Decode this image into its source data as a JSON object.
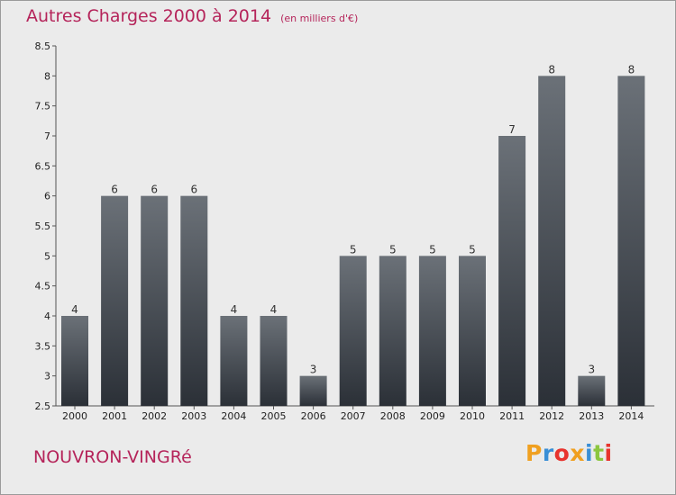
{
  "header": {
    "title": "Autres Charges 2000 à 2014",
    "subtitle": "(en milliers d'€)"
  },
  "footer": {
    "town": "NOUVRON-VINGRé",
    "logo": {
      "text": "Proxiti",
      "letter_colors": [
        "#f0a020",
        "#3a8fd6",
        "#e8342e",
        "#f0a020",
        "#3a8fd6",
        "#8cc63f",
        "#e8342e"
      ]
    }
  },
  "colors": {
    "bar_top": "#6b7178",
    "bar_bottom": "#2b3037",
    "axis": "#555555"
  },
  "chart_data": {
    "type": "bar",
    "categories": [
      "2000",
      "2001",
      "2002",
      "2003",
      "2004",
      "2005",
      "2006",
      "2007",
      "2008",
      "2009",
      "2010",
      "2011",
      "2012",
      "2013",
      "2014"
    ],
    "values": [
      4,
      6,
      6,
      6,
      4,
      4,
      3,
      5,
      5,
      5,
      5,
      7,
      8,
      3,
      8
    ],
    "value_labels": [
      "4",
      "6",
      "6",
      "6",
      "4",
      "4",
      "3",
      "5",
      "5",
      "5",
      "5",
      "7",
      "8",
      "3",
      "8"
    ],
    "yticks": [
      "2.5",
      "3",
      "3.5",
      "4",
      "4.5",
      "5",
      "5.5",
      "6",
      "6.5",
      "7",
      "7.5",
      "8",
      "8.5"
    ],
    "ylim": [
      2.5,
      8.5
    ],
    "grid": false,
    "legend": "none"
  }
}
